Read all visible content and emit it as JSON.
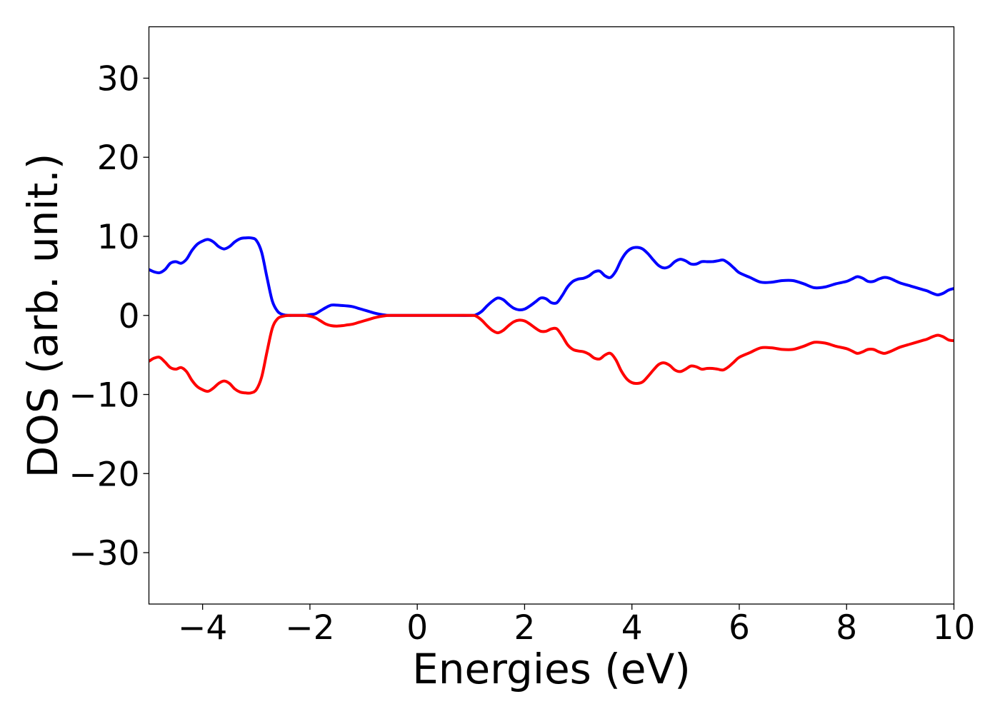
{
  "chart_data": {
    "type": "line",
    "title": "",
    "xlabel": "Energies (eV)",
    "ylabel": "DOS (arb. unit.)",
    "xlim": [
      -5,
      10
    ],
    "ylim": [
      -36.5,
      36.5
    ],
    "xticks": [
      -4,
      -2,
      0,
      2,
      4,
      6,
      8,
      10
    ],
    "xtick_labels": [
      "−4",
      "−2",
      "0",
      "2",
      "4",
      "6",
      "8",
      "10"
    ],
    "yticks": [
      30,
      20,
      10,
      0,
      -10,
      -20,
      -30
    ],
    "ytick_labels": [
      "30",
      "20",
      "10",
      "0",
      "−10",
      "−20",
      "−30"
    ],
    "grid": false,
    "legend": false,
    "series": [
      {
        "color": "#0000ff",
        "x": [
          -5,
          -4.9,
          -4.8,
          -4.7,
          -4.6,
          -4.5,
          -4.4,
          -4.3,
          -4.2,
          -4.1,
          -4.0,
          -3.9,
          -3.8,
          -3.7,
          -3.6,
          -3.5,
          -3.4,
          -3.3,
          -3.2,
          -3.1,
          -3.0,
          -2.9,
          -2.8,
          -2.7,
          -2.6,
          -2.5,
          -2.4,
          -2.3,
          -2.2,
          -2.1,
          -2.0,
          -1.9,
          -1.8,
          -1.7,
          -1.6,
          -1.5,
          -1.4,
          -1.3,
          -1.2,
          -1.1,
          -1.0,
          -0.9,
          -0.8,
          -0.7,
          -0.6,
          -0.5,
          0,
          0.5,
          1.0,
          1.1,
          1.2,
          1.3,
          1.4,
          1.5,
          1.6,
          1.7,
          1.8,
          1.9,
          2.0,
          2.1,
          2.2,
          2.3,
          2.4,
          2.5,
          2.6,
          2.7,
          2.8,
          2.9,
          3.0,
          3.1,
          3.2,
          3.3,
          3.4,
          3.5,
          3.6,
          3.7,
          3.8,
          3.9,
          4.0,
          4.1,
          4.2,
          4.3,
          4.4,
          4.5,
          4.6,
          4.7,
          4.8,
          4.9,
          5.0,
          5.1,
          5.2,
          5.3,
          5.4,
          5.5,
          5.6,
          5.7,
          5.8,
          5.9,
          6.0,
          6.2,
          6.4,
          6.6,
          6.8,
          7.0,
          7.2,
          7.4,
          7.6,
          7.8,
          8.0,
          8.1,
          8.2,
          8.3,
          8.4,
          8.5,
          8.6,
          8.7,
          8.8,
          8.9,
          9.0,
          9.2,
          9.4,
          9.5,
          9.6,
          9.7,
          9.8,
          9.9,
          10.0
        ],
        "y": [
          5.8,
          5.5,
          5.4,
          5.8,
          6.6,
          6.8,
          6.6,
          7.1,
          8.2,
          9.0,
          9.4,
          9.6,
          9.3,
          8.7,
          8.4,
          8.7,
          9.3,
          9.7,
          9.8,
          9.8,
          9.5,
          8.0,
          4.8,
          1.8,
          0.5,
          0.1,
          0.0,
          0.0,
          0.0,
          0.0,
          0.1,
          0.2,
          0.6,
          1.0,
          1.3,
          1.3,
          1.25,
          1.2,
          1.1,
          0.9,
          0.7,
          0.5,
          0.3,
          0.15,
          0.05,
          0.0,
          0.0,
          0.0,
          0.0,
          0.1,
          0.5,
          1.2,
          1.8,
          2.2,
          2.0,
          1.4,
          0.9,
          0.7,
          0.8,
          1.2,
          1.7,
          2.2,
          2.1,
          1.6,
          1.6,
          2.5,
          3.6,
          4.3,
          4.6,
          4.7,
          5.0,
          5.5,
          5.6,
          5.0,
          4.8,
          5.6,
          7.0,
          8.0,
          8.5,
          8.6,
          8.4,
          7.8,
          7.0,
          6.3,
          6.0,
          6.2,
          6.8,
          7.1,
          6.9,
          6.5,
          6.5,
          6.8,
          6.8,
          6.8,
          6.9,
          7.0,
          6.6,
          6.0,
          5.4,
          4.8,
          4.2,
          4.2,
          4.4,
          4.4,
          4.0,
          3.5,
          3.6,
          4.0,
          4.3,
          4.6,
          4.9,
          4.7,
          4.3,
          4.3,
          4.6,
          4.8,
          4.7,
          4.4,
          4.1,
          3.7,
          3.3,
          3.1,
          2.8,
          2.6,
          2.8,
          3.2,
          3.4
        ]
      },
      {
        "color": "#ff0000",
        "x": [
          -5,
          -4.9,
          -4.8,
          -4.7,
          -4.6,
          -4.5,
          -4.4,
          -4.3,
          -4.2,
          -4.1,
          -4.0,
          -3.9,
          -3.8,
          -3.7,
          -3.6,
          -3.5,
          -3.4,
          -3.3,
          -3.2,
          -3.1,
          -3.0,
          -2.9,
          -2.8,
          -2.7,
          -2.6,
          -2.5,
          -2.4,
          -2.3,
          -2.2,
          -2.1,
          -2.0,
          -1.9,
          -1.8,
          -1.7,
          -1.6,
          -1.5,
          -1.4,
          -1.3,
          -1.2,
          -1.1,
          -1.0,
          -0.9,
          -0.8,
          -0.7,
          -0.6,
          -0.5,
          0,
          0.5,
          1.0,
          1.1,
          1.2,
          1.3,
          1.4,
          1.5,
          1.6,
          1.7,
          1.8,
          1.9,
          2.0,
          2.1,
          2.2,
          2.3,
          2.4,
          2.5,
          2.6,
          2.7,
          2.8,
          2.9,
          3.0,
          3.1,
          3.2,
          3.3,
          3.4,
          3.5,
          3.6,
          3.7,
          3.8,
          3.9,
          4.0,
          4.1,
          4.2,
          4.3,
          4.4,
          4.5,
          4.6,
          4.7,
          4.8,
          4.9,
          5.0,
          5.1,
          5.2,
          5.3,
          5.4,
          5.5,
          5.6,
          5.7,
          5.8,
          5.9,
          6.0,
          6.2,
          6.4,
          6.6,
          6.8,
          7.0,
          7.2,
          7.4,
          7.6,
          7.8,
          8.0,
          8.1,
          8.2,
          8.3,
          8.4,
          8.5,
          8.6,
          8.7,
          8.8,
          8.9,
          9.0,
          9.2,
          9.4,
          9.5,
          9.6,
          9.7,
          9.8,
          9.9,
          10.0
        ],
        "y": [
          -5.8,
          -5.4,
          -5.3,
          -5.9,
          -6.6,
          -6.8,
          -6.6,
          -7.1,
          -8.2,
          -9.0,
          -9.4,
          -9.6,
          -9.2,
          -8.6,
          -8.3,
          -8.6,
          -9.3,
          -9.7,
          -9.8,
          -9.8,
          -9.4,
          -7.8,
          -4.6,
          -1.6,
          -0.4,
          -0.1,
          0.0,
          0.0,
          0.0,
          0.0,
          -0.1,
          -0.3,
          -0.7,
          -1.1,
          -1.3,
          -1.35,
          -1.3,
          -1.2,
          -1.1,
          -0.9,
          -0.7,
          -0.5,
          -0.3,
          -0.15,
          -0.05,
          0.0,
          0.0,
          0.0,
          0.0,
          -0.1,
          -0.6,
          -1.3,
          -1.9,
          -2.2,
          -1.9,
          -1.3,
          -0.8,
          -0.6,
          -0.7,
          -1.1,
          -1.6,
          -2.0,
          -2.0,
          -1.7,
          -1.7,
          -2.6,
          -3.7,
          -4.3,
          -4.5,
          -4.6,
          -4.9,
          -5.4,
          -5.5,
          -5.0,
          -4.8,
          -5.6,
          -7.0,
          -8.0,
          -8.5,
          -8.6,
          -8.4,
          -7.7,
          -6.9,
          -6.2,
          -6.0,
          -6.3,
          -6.9,
          -7.1,
          -6.8,
          -6.4,
          -6.5,
          -6.8,
          -6.7,
          -6.7,
          -6.8,
          -6.9,
          -6.5,
          -5.9,
          -5.3,
          -4.7,
          -4.1,
          -4.1,
          -4.3,
          -4.3,
          -3.9,
          -3.4,
          -3.5,
          -3.9,
          -4.2,
          -4.5,
          -4.8,
          -4.6,
          -4.3,
          -4.3,
          -4.6,
          -4.8,
          -4.6,
          -4.3,
          -4.0,
          -3.6,
          -3.2,
          -3.0,
          -2.7,
          -2.5,
          -2.7,
          -3.1,
          -3.2
        ]
      }
    ]
  }
}
